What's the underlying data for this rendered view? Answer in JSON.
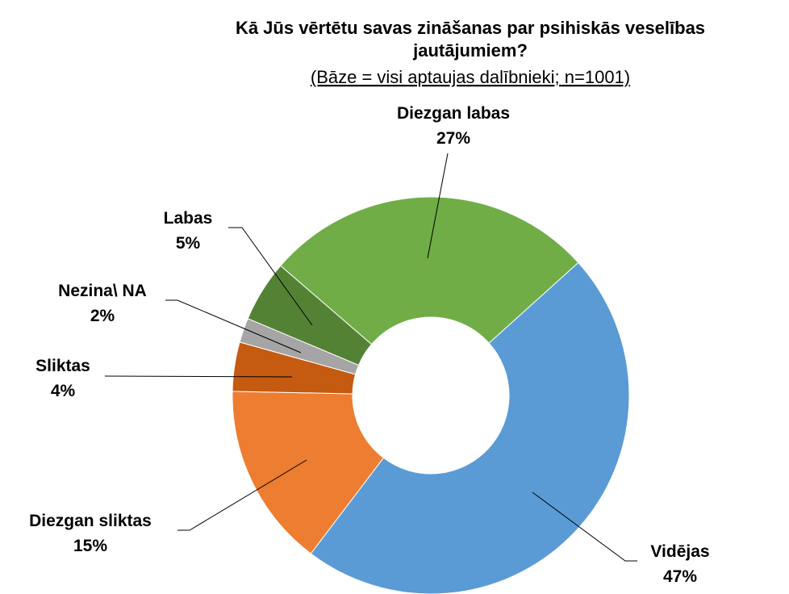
{
  "chart_data": {
    "type": "donut",
    "title": [
      "Kā Jūs vērtētu savas zināšanas par psihiskās veselības",
      "jautājumiem?"
    ],
    "subtitle": "(Bāze = visi aptaujas dalībnieki; n=1001)",
    "categories": [
      "Vidējas",
      "Diezgan sliktas",
      "Sliktas",
      "Nezina\\ NA",
      "Labas",
      "Diezgan labas"
    ],
    "values": [
      47,
      15,
      4,
      2,
      5,
      27
    ],
    "value_labels": [
      "47%",
      "15%",
      "4%",
      "2%",
      "5%",
      "27%"
    ],
    "colors": [
      "#5b9bd5",
      "#ed7d31",
      "#c55a11",
      "#a5a5a5",
      "#548235",
      "#70ad47"
    ]
  }
}
